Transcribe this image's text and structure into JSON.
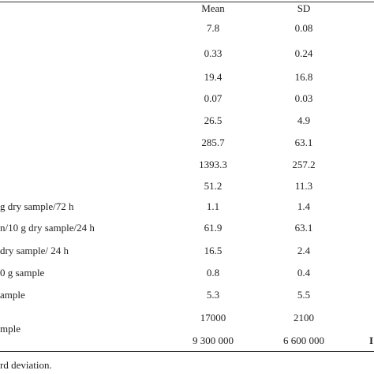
{
  "table": {
    "header": {
      "mean": "Mean",
      "sd": "SD"
    },
    "rows": [
      {
        "mean": "7.8",
        "sd": "0.08"
      },
      {
        "mean": "0.33",
        "sd": "0.24"
      },
      {
        "mean": "19.4",
        "sd": "16.8"
      },
      {
        "mean": "0.07",
        "sd": "0.03"
      },
      {
        "mean": "26.5",
        "sd": "4.9"
      },
      {
        "mean": "285.7",
        "sd": "63.1"
      },
      {
        "mean": "1393.3",
        "sd": "257.2"
      },
      {
        "mean": "51.2",
        "sd": "11.3"
      },
      {
        "label": "g dry sample/72 h",
        "mean": "1.1",
        "sd": "1.4"
      },
      {
        "label": "n/10 g dry sample/24 h",
        "mean": "61.9",
        "sd": "63.1"
      },
      {
        "label": "dry sample/ 24 h",
        "mean": "16.5",
        "sd": "2.4"
      },
      {
        "label": "0 g sample",
        "mean": "0.8",
        "sd": "0.4"
      },
      {
        "label": "ample",
        "mean": "5.3",
        "sd": "5.5"
      },
      {
        "label": "mple",
        "mean": [
          "17000",
          "9 300 000"
        ],
        "sd": [
          "2100",
          "6 600 000"
        ],
        "extra": "I"
      }
    ],
    "footnote": "rd deviation."
  }
}
